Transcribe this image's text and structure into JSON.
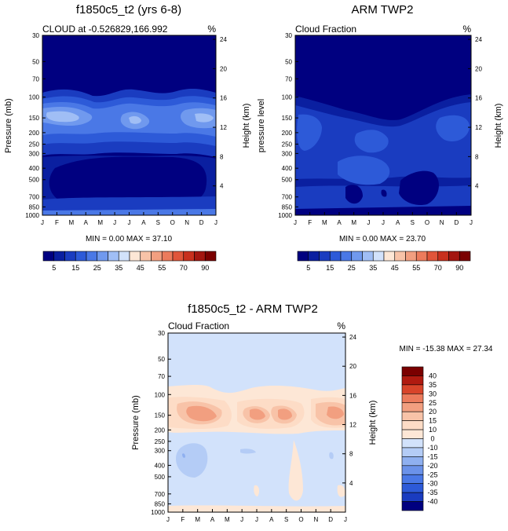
{
  "chart_data": [
    {
      "type": "heatmap",
      "title": "f1850c5_t2 (yrs 6-8)",
      "subtitle_left": "CLOUD at -0.526829,166.992",
      "subtitle_right": "%",
      "ylabel": "Pressure (mb)",
      "ylabel_right": "Height (km)",
      "x_ticks": [
        "J",
        "F",
        "M",
        "A",
        "M",
        "J",
        "J",
        "A",
        "S",
        "O",
        "N",
        "D",
        "J"
      ],
      "y_ticks": [
        "30",
        "50",
        "70",
        "100",
        "150",
        "200",
        "250",
        "300",
        "400",
        "500",
        "700",
        "850",
        "1000"
      ],
      "y_ticks_right": [
        "24",
        "20",
        "16",
        "12",
        "8",
        "4"
      ],
      "minmax_text": "MIN =   0.00 MAX =  37.10",
      "min": 0.0,
      "max": 37.1,
      "levels": [
        5,
        10,
        15,
        20,
        25,
        30,
        35,
        40,
        45,
        50,
        55,
        60,
        70,
        80,
        90
      ]
    },
    {
      "type": "heatmap",
      "title": "ARM TWP2",
      "subtitle_left": "Cloud Fraction",
      "subtitle_right": "%",
      "ylabel": "pressure level",
      "ylabel_right": "Height (km)",
      "x_ticks": [
        "J",
        "F",
        "M",
        "A",
        "M",
        "J",
        "J",
        "A",
        "S",
        "O",
        "N",
        "D",
        "J"
      ],
      "y_ticks": [
        "30",
        "50",
        "70",
        "100",
        "150",
        "200",
        "250",
        "300",
        "400",
        "500",
        "700",
        "850",
        "1000"
      ],
      "y_ticks_right": [
        "24",
        "20",
        "16",
        "12",
        "8",
        "4"
      ],
      "minmax_text": "MIN =   0.00 MAX =  23.70",
      "min": 0.0,
      "max": 23.7,
      "levels": [
        5,
        10,
        15,
        20,
        25,
        30,
        35,
        40,
        45,
        50,
        55,
        60,
        70,
        80,
        90
      ]
    },
    {
      "type": "heatmap",
      "title": "f1850c5_t2 - ARM TWP2",
      "subtitle_left": "Cloud Fraction",
      "subtitle_right": "%",
      "ylabel": "Pressure (mb)",
      "ylabel_right": "Height (km)",
      "x_ticks": [
        "J",
        "F",
        "M",
        "A",
        "M",
        "J",
        "J",
        "A",
        "S",
        "O",
        "N",
        "D",
        "J"
      ],
      "y_ticks": [
        "30",
        "50",
        "70",
        "100",
        "150",
        "200",
        "250",
        "300",
        "400",
        "500",
        "700",
        "850",
        "1000"
      ],
      "y_ticks_right": [
        "24",
        "20",
        "16",
        "12",
        "8",
        "4"
      ],
      "minmax_text": "MIN = -15.38 MAX =  27.34",
      "min": -15.38,
      "max": 27.34,
      "levels": [
        -40,
        -35,
        -30,
        -25,
        -20,
        -15,
        -10,
        0,
        10,
        15,
        20,
        25,
        30,
        35,
        40
      ]
    }
  ],
  "colorbar_top": {
    "labels": [
      "5",
      "15",
      "25",
      "35",
      "45",
      "55",
      "70",
      "90"
    ],
    "colors": [
      "#000080",
      "#0a1fa0",
      "#1a3cc0",
      "#2d5ad8",
      "#4a78e6",
      "#7099ee",
      "#a0bef5",
      "#d2e2fb",
      "#fde7d6",
      "#f8c3a8",
      "#f29f80",
      "#ec7b5c",
      "#e0553a",
      "#c8301e",
      "#a31610",
      "#7a0000"
    ]
  },
  "colorbar_diff": {
    "labels": [
      "40",
      "35",
      "30",
      "25",
      "20",
      "15",
      "10",
      "0",
      "-10",
      "-15",
      "-20",
      "-25",
      "-30",
      "-35",
      "-40"
    ],
    "colors": [
      "#7a0000",
      "#b01a10",
      "#d8442a",
      "#ec7b5c",
      "#f29f80",
      "#f8c3a8",
      "#fddcc6",
      "#fde7d6",
      "#d2e2fb",
      "#b4ccf6",
      "#8fb0f0",
      "#6b92e9",
      "#4a78e6",
      "#2d5ad8",
      "#1a3cc0",
      "#000080"
    ]
  }
}
